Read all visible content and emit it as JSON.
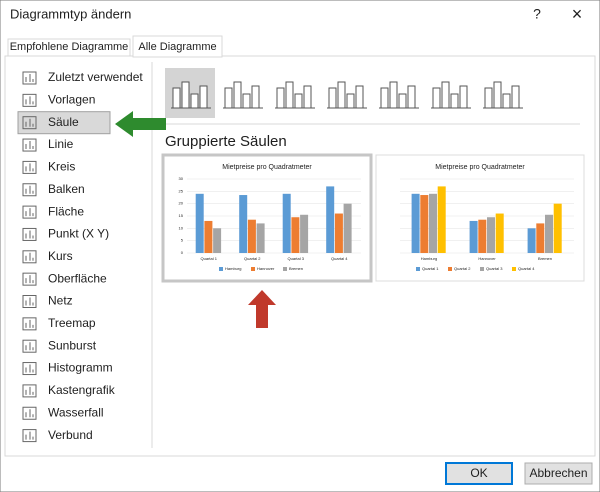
{
  "window": {
    "title": "Diagrammtyp ändern",
    "help": "?",
    "close": "×"
  },
  "tabs": [
    "Empfohlene Diagramme",
    "Alle Diagramme"
  ],
  "selected_tab": 1,
  "chart_types": [
    "Zuletzt verwendet",
    "Vorlagen",
    "Säule",
    "Linie",
    "Kreis",
    "Balken",
    "Fläche",
    "Punkt (X Y)",
    "Kurs",
    "Oberfläche",
    "Netz",
    "Treemap",
    "Sunburst",
    "Histogramm",
    "Kastengrafik",
    "Wasserfall",
    "Verbund"
  ],
  "selected_type": 2,
  "subtype_title": "Gruppierte Säulen",
  "previews": [
    {
      "type": "bar",
      "title": "Mietpreise pro Quadratmeter",
      "categories": [
        "Quartal 1",
        "Quartal 2",
        "Quartal 3",
        "Quartal 4"
      ],
      "series": [
        {
          "name": "Hamburg",
          "color": "#5b9bd5",
          "values": [
            24,
            23.5,
            24,
            27
          ]
        },
        {
          "name": "Hannover",
          "color": "#ed7d31",
          "values": [
            13,
            13.5,
            14.5,
            16
          ]
        },
        {
          "name": "Bremen",
          "color": "#a5a5a5",
          "values": [
            10,
            12,
            15.5,
            20
          ]
        }
      ],
      "ylim": [
        0,
        30
      ],
      "yticks": [
        0,
        5,
        10,
        15,
        20,
        25,
        30
      ],
      "selected": true
    },
    {
      "type": "bar",
      "title": "Mietpreise pro Quadratmeter",
      "categories": [
        "Hamburg",
        "Hannover",
        "Bremen"
      ],
      "series": [
        {
          "name": "Quartal 1",
          "color": "#5b9bd5",
          "values": [
            24,
            13,
            10
          ]
        },
        {
          "name": "Quartal 2",
          "color": "#ed7d31",
          "values": [
            23.5,
            13.5,
            12
          ]
        },
        {
          "name": "Quartal 3",
          "color": "#a5a5a5",
          "values": [
            24,
            14.5,
            15.5
          ]
        },
        {
          "name": "Quartal 4",
          "color": "#ffc000",
          "values": [
            27,
            16,
            20
          ]
        }
      ],
      "ylim": [
        0,
        30
      ],
      "yticks": [
        0,
        5,
        10,
        15,
        20,
        25,
        30
      ],
      "selected": false
    }
  ],
  "buttons": [
    "OK",
    "Abbrechen"
  ]
}
